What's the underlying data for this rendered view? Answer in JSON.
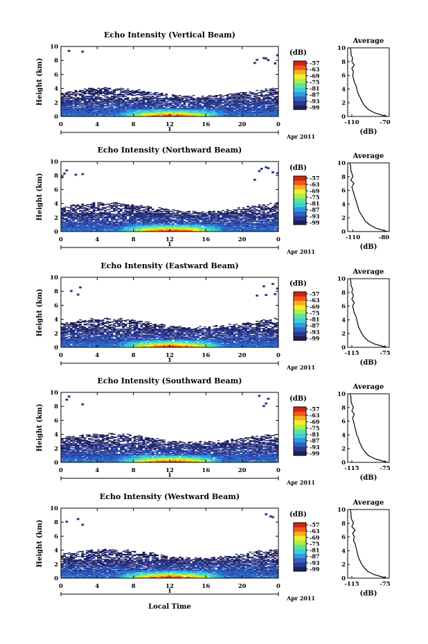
{
  "colors": {
    "scale": [
      "#1f1f5a",
      "#2b3a8f",
      "#2f62c4",
      "#2e9be0",
      "#3ad0d8",
      "#5be3a0",
      "#a8ef4a",
      "#f4ee2a",
      "#f6b01e",
      "#ef5a16",
      "#d92010"
    ],
    "background": "#ffffff",
    "axis": "#000000"
  },
  "chart_data": [
    {
      "type": "heatmap",
      "title": "Echo Intensity (Vertical Beam)",
      "ylabel": "Height (km)",
      "xlim": [
        0,
        24
      ],
      "ylim": [
        0,
        10
      ],
      "x_ticks": [
        "0",
        "4",
        "8",
        "12",
        "16",
        "20",
        "0"
      ],
      "y_ticks": [
        "0",
        "2",
        "4",
        "6",
        "8",
        "10"
      ],
      "date_label": "1",
      "date_suffix": "Apr 2011",
      "colorbar": {
        "unit": "(dB)",
        "ticks": [
          "-57",
          "-63",
          "-69",
          "-75",
          "-81",
          "-87",
          "-93",
          "-99"
        ]
      },
      "average": {
        "title": "Average",
        "xlabel": "(dB)",
        "x_ticks": [
          "-110",
          "-70"
        ],
        "xlim": [
          -115,
          -65
        ],
        "heights": [
          0,
          0.5,
          1,
          1.5,
          2,
          2.5,
          3,
          3.5,
          4,
          4.5,
          5,
          5.5,
          6,
          6.5,
          7,
          7.5,
          8,
          8.5,
          9,
          9.5,
          10
        ],
        "values": [
          -68,
          -82,
          -90,
          -94,
          -97,
          -99,
          -101,
          -103,
          -104,
          -105,
          -107,
          -108,
          -109,
          -108,
          -110,
          -107,
          -110,
          -109,
          -111,
          -111,
          -112
        ]
      }
    },
    {
      "type": "heatmap",
      "title": "Echo Intensity (Northward Beam)",
      "ylabel": "Height (km)",
      "xlim": [
        0,
        24
      ],
      "ylim": [
        0,
        10
      ],
      "x_ticks": [
        "0",
        "4",
        "8",
        "12",
        "16",
        "20",
        "0"
      ],
      "y_ticks": [
        "0",
        "2",
        "4",
        "6",
        "8",
        "10"
      ],
      "date_label": "1",
      "date_suffix": "Apr 2011",
      "colorbar": {
        "unit": "(dB)",
        "ticks": [
          "-57",
          "-63",
          "-69",
          "-75",
          "-81",
          "-87",
          "-93",
          "-99"
        ]
      },
      "average": {
        "title": "Average",
        "xlabel": "(dB)",
        "x_ticks": [
          "-110",
          "-80"
        ],
        "xlim": [
          -115,
          -75
        ],
        "heights": [
          0,
          0.5,
          1,
          1.5,
          2,
          2.5,
          3,
          3.5,
          4,
          4.5,
          5,
          5.5,
          6,
          6.5,
          7,
          7.5,
          8,
          8.5,
          9,
          9.5,
          10
        ],
        "values": [
          -77,
          -88,
          -94,
          -98,
          -100,
          -102,
          -104,
          -105,
          -106,
          -107,
          -108,
          -109,
          -110,
          -111,
          -109,
          -112,
          -110,
          -111,
          -112,
          -112,
          -113
        ]
      }
    },
    {
      "type": "heatmap",
      "title": "Echo Intensity (Eastward Beam)",
      "ylabel": "Height (km)",
      "xlim": [
        0,
        24
      ],
      "ylim": [
        0,
        10
      ],
      "x_ticks": [
        "0",
        "4",
        "8",
        "12",
        "16",
        "20",
        "0"
      ],
      "y_ticks": [
        "0",
        "2",
        "4",
        "6",
        "8",
        "10"
      ],
      "date_label": "1",
      "date_suffix": "Apr 2011",
      "colorbar": {
        "unit": "(dB)",
        "ticks": [
          "-57",
          "-63",
          "-69",
          "-75",
          "-81",
          "-87",
          "-93",
          "-99"
        ]
      },
      "average": {
        "title": "Average",
        "xlabel": "(dB)",
        "x_ticks": [
          "-115",
          "-75"
        ],
        "xlim": [
          -120,
          -70
        ],
        "heights": [
          0,
          0.5,
          1,
          1.5,
          2,
          2.5,
          3,
          3.5,
          4,
          4.5,
          5,
          5.5,
          6,
          6.5,
          7,
          7.5,
          8,
          8.5,
          9,
          9.5,
          10
        ],
        "values": [
          -73,
          -88,
          -96,
          -100,
          -103,
          -105,
          -107,
          -108,
          -109,
          -110,
          -112,
          -113,
          -114,
          -112,
          -115,
          -113,
          -115,
          -114,
          -116,
          -116,
          -117
        ]
      }
    },
    {
      "type": "heatmap",
      "title": "Echo Intensity (Southward Beam)",
      "ylabel": "Height (km)",
      "xlim": [
        0,
        24
      ],
      "ylim": [
        0,
        10
      ],
      "x_ticks": [
        "0",
        "4",
        "8",
        "12",
        "16",
        "20",
        "0"
      ],
      "y_ticks": [
        "0",
        "2",
        "4",
        "6",
        "8",
        "10"
      ],
      "date_label": "1",
      "date_suffix": "Apr 2011",
      "colorbar": {
        "unit": "(dB)",
        "ticks": [
          "-57",
          "-63",
          "-69",
          "-75",
          "-81",
          "-87",
          "-93",
          "-99"
        ]
      },
      "average": {
        "title": "Average",
        "xlabel": "(dB)",
        "x_ticks": [
          "-115",
          "-75"
        ],
        "xlim": [
          -120,
          -70
        ],
        "heights": [
          0,
          0.5,
          1,
          1.5,
          2,
          2.5,
          3,
          3.5,
          4,
          4.5,
          5,
          5.5,
          6,
          6.5,
          7,
          7.5,
          8,
          8.5,
          9,
          9.5,
          10
        ],
        "values": [
          -72,
          -87,
          -95,
          -99,
          -102,
          -104,
          -106,
          -107,
          -109,
          -110,
          -111,
          -112,
          -113,
          -114,
          -112,
          -115,
          -113,
          -115,
          -116,
          -116,
          -117
        ]
      }
    },
    {
      "type": "heatmap",
      "title": "Echo Intensity (Westward Beam)",
      "ylabel": "Height (km)",
      "xlabel": "Local Time",
      "xlim": [
        0,
        24
      ],
      "ylim": [
        0,
        10
      ],
      "x_ticks": [
        "0",
        "4",
        "8",
        "12",
        "16",
        "20",
        "0"
      ],
      "y_ticks": [
        "0",
        "2",
        "4",
        "6",
        "8",
        "10"
      ],
      "date_label": "1",
      "date_suffix": "Apr 2011",
      "colorbar": {
        "unit": "(dB)",
        "ticks": [
          "-57",
          "-63",
          "-69",
          "-75",
          "-81",
          "-87",
          "-93",
          "-99"
        ]
      },
      "average": {
        "title": "Average",
        "xlabel": "(dB)",
        "x_ticks": [
          "-115",
          "-75"
        ],
        "xlim": [
          -120,
          -70
        ],
        "heights": [
          0,
          0.5,
          1,
          1.5,
          2,
          2.5,
          3,
          3.5,
          4,
          4.5,
          5,
          5.5,
          6,
          6.5,
          7,
          7.5,
          8,
          8.5,
          9,
          9.5,
          10
        ],
        "values": [
          -73,
          -88,
          -96,
          -100,
          -103,
          -105,
          -107,
          -108,
          -109,
          -110,
          -111,
          -113,
          -112,
          -114,
          -111,
          -115,
          -113,
          -115,
          -116,
          -116,
          -117
        ]
      }
    }
  ]
}
